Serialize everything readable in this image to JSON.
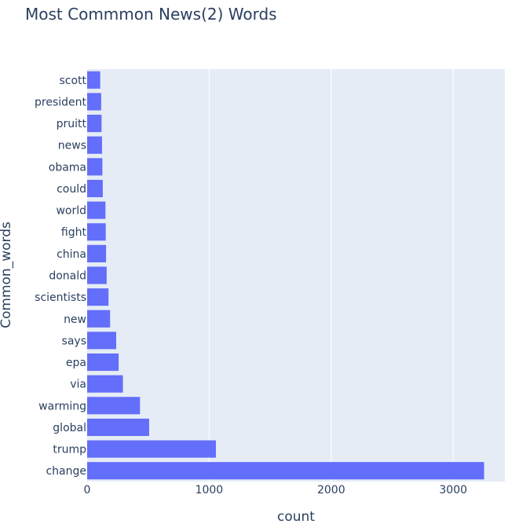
{
  "chart_data": {
    "type": "bar",
    "orientation": "horizontal",
    "title": "Most Commmon News(2) Words",
    "xlabel": "count",
    "ylabel": "Common_words",
    "xlim": [
      0,
      3400
    ],
    "xticks": [
      0,
      1000,
      2000,
      3000
    ],
    "grid": true,
    "colors": {
      "bar": "#636efa",
      "plot_bg": "#e5ecf6",
      "grid": "#ffffff",
      "text": "#2a3f5f"
    },
    "categories": [
      "scott",
      "president",
      "pruitt",
      "news",
      "obama",
      "could",
      "world",
      "fight",
      "china",
      "donald",
      "scientists",
      "new",
      "says",
      "epa",
      "via",
      "warming",
      "global",
      "trump",
      "change"
    ],
    "values": [
      107,
      115,
      118,
      122,
      125,
      128,
      150,
      152,
      155,
      160,
      175,
      188,
      238,
      258,
      293,
      433,
      508,
      1055,
      3253
    ]
  }
}
